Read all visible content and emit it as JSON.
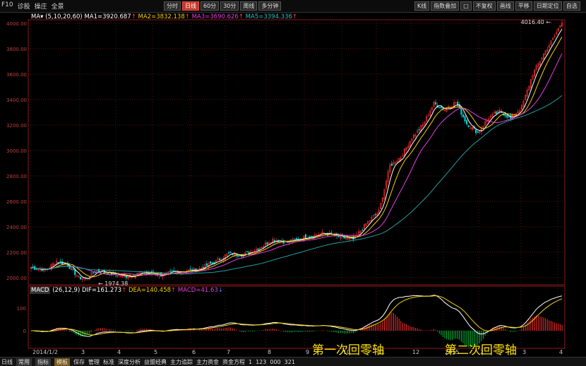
{
  "toolbar": {
    "left_tabs": [
      "F10",
      "诊股",
      "操庄",
      "全景"
    ],
    "period_buttons": [
      "分时",
      "日线",
      "60分",
      "30分",
      "周线",
      "多分钟"
    ],
    "active_period": "日线",
    "right_buttons": [
      "K线",
      "指数叠加",
      "□",
      "不复权",
      "画线",
      "平移",
      "日期定位",
      "自选"
    ]
  },
  "ma_legend": {
    "label": "MA",
    "params": "(5,10,20,60)",
    "ma1": "MA1=3920.687",
    "ma2": "MA2=3832.138",
    "ma3": "MA3=3690.626",
    "ma5": "MA5=3394.336"
  },
  "price_axis": [
    "4000.00",
    "3800.00",
    "3600.00",
    "3400.00",
    "3200.00",
    "3000.00",
    "2800.00",
    "2600.00",
    "2400.00",
    "2200.00",
    "2000.00"
  ],
  "high_label": "4016.40",
  "low_label": "1974.38",
  "macd": {
    "label": "MACD",
    "params": "(26,12,9)",
    "dif": "DIF=161.273",
    "dea": "DEA=140.458",
    "macd": "MACD=41.63",
    "axis": [
      "100",
      "0"
    ]
  },
  "date_axis": [
    "2014/1/2",
    "3",
    "4",
    "5",
    "6",
    "7",
    "8",
    "9",
    "10",
    "11",
    "12",
    "2015",
    "2",
    "3",
    "4"
  ],
  "annotations": {
    "first": "第一次回零轴",
    "second": "第二次回零轴"
  },
  "colors": {
    "up": "#ff3030",
    "down": "#00d8d8",
    "ma5": "#ffffff",
    "ma10": "#f0d000",
    "ma20": "#e040e0",
    "ma60": "#20a0a0"
  },
  "bottom_bar": {
    "left": "日线",
    "tabs": [
      "常用",
      "指标",
      "模板",
      "保存",
      "管理",
      "标准",
      "深度分析",
      "益盟经典",
      "主力追踪",
      "主力资金",
      "资金方程",
      "1",
      "123",
      "000",
      "321"
    ]
  }
}
